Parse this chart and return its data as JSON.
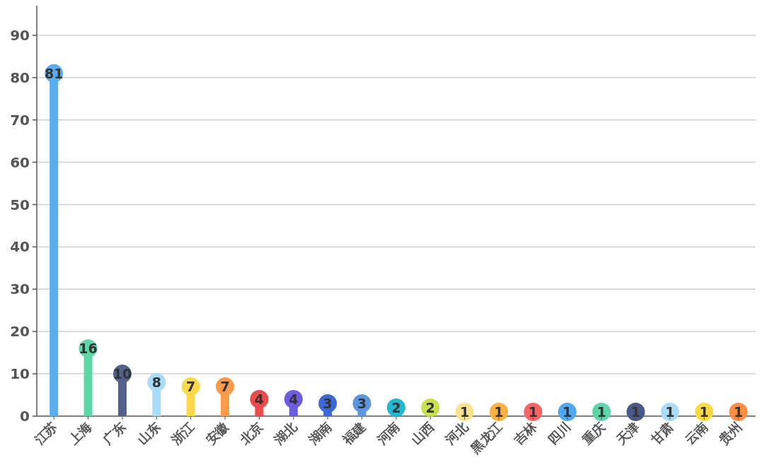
{
  "chart_data": {
    "type": "lollipop",
    "categories": [
      "江苏",
      "上海",
      "广东",
      "山东",
      "浙江",
      "安徽",
      "北京",
      "湖北",
      "湖南",
      "福建",
      "河南",
      "山西",
      "河北",
      "黑龙江",
      "吉林",
      "四川",
      "重庆",
      "天津",
      "甘肃",
      "云南",
      "贵州"
    ],
    "values": [
      81,
      16,
      10,
      8,
      7,
      7,
      4,
      4,
      3,
      3,
      2,
      2,
      1,
      1,
      1,
      1,
      1,
      1,
      1,
      1,
      1
    ],
    "colors": [
      "#5aaef0",
      "#5dd6a8",
      "#52628c",
      "#a8dcf8",
      "#fbd94a",
      "#fb9a4a",
      "#e84c4c",
      "#6b5ce0",
      "#3d68d8",
      "#5e95e0",
      "#23b8d0",
      "#c8e050",
      "#fbe38e",
      "#fbb040",
      "#f86464",
      "#50a8f0",
      "#5cd6a8",
      "#4a5a88",
      "#a8dcf8",
      "#fbd940",
      "#fb8c40"
    ],
    "ylim": [
      0,
      97
    ],
    "yticks": [
      0,
      10,
      20,
      30,
      40,
      50,
      60,
      70,
      80,
      90
    ],
    "grid": "y",
    "data_labels": true
  }
}
